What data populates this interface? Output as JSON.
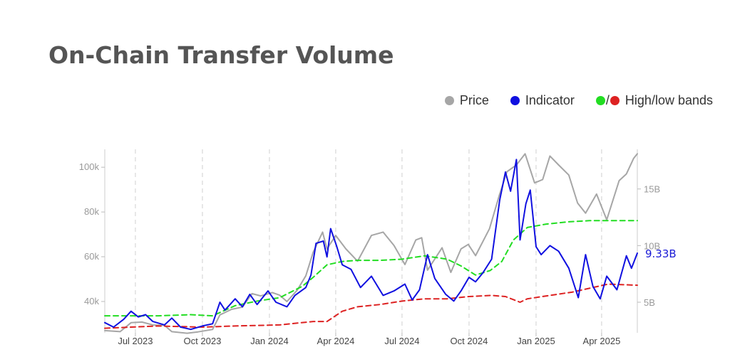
{
  "title": "On-Chain Transfer Volume",
  "legend": {
    "price": "Price",
    "indicator": "Indicator",
    "bands_sep": "/",
    "bands": "High/low bands"
  },
  "colors": {
    "price": "#a6a6a6",
    "indicator": "#1010e0",
    "high_band": "#22dd22",
    "low_band": "#dd2222",
    "title": "#555555"
  },
  "chart_data": {
    "type": "line",
    "x_ticks": [
      "Jul 2023",
      "Oct 2023",
      "Jan 2024",
      "Apr 2024",
      "Jul 2024",
      "Oct 2024",
      "Jan 2025",
      "Apr 2025"
    ],
    "x_tick_dates": [
      "2023-07-01",
      "2023-10-01",
      "2024-01-01",
      "2024-04-01",
      "2024-07-01",
      "2024-10-01",
      "2025-01-01",
      "2025-04-01"
    ],
    "xlim": [
      "2023-05-20",
      "2025-05-20"
    ],
    "y_left": {
      "ticks": [
        "40k",
        "60k",
        "80k",
        "100k"
      ],
      "tick_values": [
        40000,
        60000,
        80000,
        100000
      ],
      "lim": [
        26000,
        108000
      ]
    },
    "y_right": {
      "ticks": [
        "5B",
        "10B",
        "15B"
      ],
      "tick_values": [
        5,
        10,
        15
      ],
      "lim": [
        2.3,
        18.5
      ]
    },
    "last_value_label": "9.33B",
    "grid": "vertical dashed at x ticks",
    "legend_position": "top-right",
    "series": [
      {
        "name": "Price",
        "axis": "left",
        "points": [
          [
            "2023-05-20",
            27000
          ],
          [
            "2023-06-10",
            26500
          ],
          [
            "2023-06-25",
            30500
          ],
          [
            "2023-07-10",
            30800
          ],
          [
            "2023-07-25",
            29500
          ],
          [
            "2023-08-10",
            29300
          ],
          [
            "2023-08-20",
            26500
          ],
          [
            "2023-09-10",
            25800
          ],
          [
            "2023-09-25",
            26400
          ],
          [
            "2023-10-15",
            27500
          ],
          [
            "2023-10-25",
            34000
          ],
          [
            "2023-11-10",
            36500
          ],
          [
            "2023-11-25",
            37500
          ],
          [
            "2023-12-08",
            43500
          ],
          [
            "2023-12-20",
            42500
          ],
          [
            "2024-01-05",
            44000
          ],
          [
            "2024-01-15",
            42800
          ],
          [
            "2024-01-25",
            40000
          ],
          [
            "2024-02-08",
            45000
          ],
          [
            "2024-02-20",
            51500
          ],
          [
            "2024-03-01",
            62000
          ],
          [
            "2024-03-14",
            71000
          ],
          [
            "2024-03-20",
            63500
          ],
          [
            "2024-04-01",
            69500
          ],
          [
            "2024-04-15",
            63500
          ],
          [
            "2024-05-01",
            58000
          ],
          [
            "2024-05-20",
            69500
          ],
          [
            "2024-06-05",
            71000
          ],
          [
            "2024-06-20",
            65000
          ],
          [
            "2024-07-05",
            56500
          ],
          [
            "2024-07-20",
            67500
          ],
          [
            "2024-07-28",
            68500
          ],
          [
            "2024-08-05",
            54000
          ],
          [
            "2024-08-25",
            64000
          ],
          [
            "2024-09-06",
            53000
          ],
          [
            "2024-09-20",
            63500
          ],
          [
            "2024-09-30",
            65500
          ],
          [
            "2024-10-10",
            60500
          ],
          [
            "2024-10-29",
            72500
          ],
          [
            "2024-11-12",
            88000
          ],
          [
            "2024-11-22",
            98000
          ],
          [
            "2024-12-05",
            101000
          ],
          [
            "2024-12-17",
            106000
          ],
          [
            "2024-12-30",
            93000
          ],
          [
            "2025-01-10",
            94500
          ],
          [
            "2025-01-20",
            105000
          ],
          [
            "2025-02-01",
            101000
          ],
          [
            "2025-02-15",
            96500
          ],
          [
            "2025-02-27",
            84000
          ],
          [
            "2025-03-10",
            79500
          ],
          [
            "2025-03-25",
            88000
          ],
          [
            "2025-04-08",
            76500
          ],
          [
            "2025-04-25",
            94000
          ],
          [
            "2025-05-05",
            97000
          ],
          [
            "2025-05-15",
            104000
          ],
          [
            "2025-05-20",
            106000
          ]
        ]
      },
      {
        "name": "Indicator",
        "axis": "right",
        "points": [
          [
            "2023-05-20",
            3.2
          ],
          [
            "2023-06-01",
            2.8
          ],
          [
            "2023-06-15",
            3.5
          ],
          [
            "2023-06-25",
            4.2
          ],
          [
            "2023-07-05",
            3.7
          ],
          [
            "2023-07-15",
            3.9
          ],
          [
            "2023-07-25",
            3.3
          ],
          [
            "2023-08-10",
            3.0
          ],
          [
            "2023-08-20",
            3.6
          ],
          [
            "2023-09-01",
            2.8
          ],
          [
            "2023-09-15",
            2.6
          ],
          [
            "2023-10-01",
            2.9
          ],
          [
            "2023-10-15",
            3.1
          ],
          [
            "2023-10-25",
            5.0
          ],
          [
            "2023-11-01",
            4.3
          ],
          [
            "2023-11-15",
            5.3
          ],
          [
            "2023-11-25",
            4.6
          ],
          [
            "2023-12-05",
            5.7
          ],
          [
            "2023-12-15",
            4.8
          ],
          [
            "2023-12-30",
            6.0
          ],
          [
            "2024-01-10",
            5.0
          ],
          [
            "2024-01-25",
            4.6
          ],
          [
            "2024-02-05",
            5.6
          ],
          [
            "2024-02-20",
            6.3
          ],
          [
            "2024-02-27",
            7.4
          ],
          [
            "2024-03-05",
            10.2
          ],
          [
            "2024-03-15",
            10.4
          ],
          [
            "2024-03-20",
            9.0
          ],
          [
            "2024-03-25",
            11.5
          ],
          [
            "2024-04-02",
            10.0
          ],
          [
            "2024-04-10",
            8.3
          ],
          [
            "2024-04-22",
            7.9
          ],
          [
            "2024-05-05",
            6.3
          ],
          [
            "2024-05-20",
            7.3
          ],
          [
            "2024-06-05",
            5.6
          ],
          [
            "2024-06-20",
            6.0
          ],
          [
            "2024-07-05",
            6.6
          ],
          [
            "2024-07-15",
            5.2
          ],
          [
            "2024-07-25",
            6.1
          ],
          [
            "2024-08-05",
            9.2
          ],
          [
            "2024-08-15",
            7.1
          ],
          [
            "2024-08-30",
            5.7
          ],
          [
            "2024-09-10",
            5.1
          ],
          [
            "2024-09-20",
            6.0
          ],
          [
            "2024-10-01",
            7.2
          ],
          [
            "2024-10-10",
            6.8
          ],
          [
            "2024-10-20",
            7.6
          ],
          [
            "2024-11-01",
            8.8
          ],
          [
            "2024-11-12",
            14.0
          ],
          [
            "2024-11-20",
            16.5
          ],
          [
            "2024-11-27",
            14.8
          ],
          [
            "2024-12-05",
            17.6
          ],
          [
            "2024-12-10",
            10.5
          ],
          [
            "2024-12-18",
            13.7
          ],
          [
            "2024-12-24",
            14.9
          ],
          [
            "2025-01-01",
            9.9
          ],
          [
            "2025-01-08",
            9.2
          ],
          [
            "2025-01-20",
            10.0
          ],
          [
            "2025-02-01",
            9.5
          ],
          [
            "2025-02-15",
            8.0
          ],
          [
            "2025-02-28",
            5.4
          ],
          [
            "2025-03-10",
            9.2
          ],
          [
            "2025-03-20",
            6.4
          ],
          [
            "2025-03-30",
            5.3
          ],
          [
            "2025-04-08",
            7.3
          ],
          [
            "2025-04-22",
            6.1
          ],
          [
            "2025-05-05",
            9.1
          ],
          [
            "2025-05-12",
            8.0
          ],
          [
            "2025-05-20",
            9.33
          ]
        ]
      },
      {
        "name": "High band",
        "axis": "right",
        "points": [
          [
            "2023-05-20",
            3.8
          ],
          [
            "2023-08-01",
            3.8
          ],
          [
            "2023-09-15",
            3.9
          ],
          [
            "2023-10-15",
            3.8
          ],
          [
            "2023-11-15",
            4.7
          ],
          [
            "2023-12-15",
            5.1
          ],
          [
            "2024-01-15",
            5.4
          ],
          [
            "2024-02-15",
            6.4
          ],
          [
            "2024-03-01",
            7.2
          ],
          [
            "2024-03-20",
            8.3
          ],
          [
            "2024-04-10",
            8.6
          ],
          [
            "2024-05-01",
            8.7
          ],
          [
            "2024-06-01",
            8.7
          ],
          [
            "2024-07-01",
            8.8
          ],
          [
            "2024-08-01",
            9.1
          ],
          [
            "2024-09-01",
            8.8
          ],
          [
            "2024-09-20",
            8.2
          ],
          [
            "2024-10-10",
            7.4
          ],
          [
            "2024-10-30",
            7.8
          ],
          [
            "2024-11-15",
            8.6
          ],
          [
            "2024-12-01",
            10.5
          ],
          [
            "2024-12-20",
            11.6
          ],
          [
            "2025-01-15",
            11.9
          ],
          [
            "2025-02-15",
            12.1
          ],
          [
            "2025-03-15",
            12.2
          ],
          [
            "2025-05-20",
            12.2
          ]
        ]
      },
      {
        "name": "Low band",
        "axis": "right",
        "points": [
          [
            "2023-05-20",
            2.7
          ],
          [
            "2023-08-01",
            2.9
          ],
          [
            "2023-10-01",
            2.8
          ],
          [
            "2023-11-15",
            2.9
          ],
          [
            "2024-01-15",
            3.0
          ],
          [
            "2024-03-01",
            3.3
          ],
          [
            "2024-03-20",
            3.3
          ],
          [
            "2024-04-10",
            4.2
          ],
          [
            "2024-05-01",
            4.6
          ],
          [
            "2024-06-01",
            4.8
          ],
          [
            "2024-07-01",
            5.1
          ],
          [
            "2024-08-01",
            5.3
          ],
          [
            "2024-09-01",
            5.3
          ],
          [
            "2024-10-01",
            5.5
          ],
          [
            "2024-11-01",
            5.6
          ],
          [
            "2024-11-20",
            5.5
          ],
          [
            "2024-12-10",
            5.0
          ],
          [
            "2024-12-20",
            5.3
          ],
          [
            "2025-01-20",
            5.6
          ],
          [
            "2025-02-20",
            5.9
          ],
          [
            "2025-03-20",
            6.3
          ],
          [
            "2025-04-10",
            6.6
          ],
          [
            "2025-05-20",
            6.5
          ]
        ]
      }
    ]
  }
}
